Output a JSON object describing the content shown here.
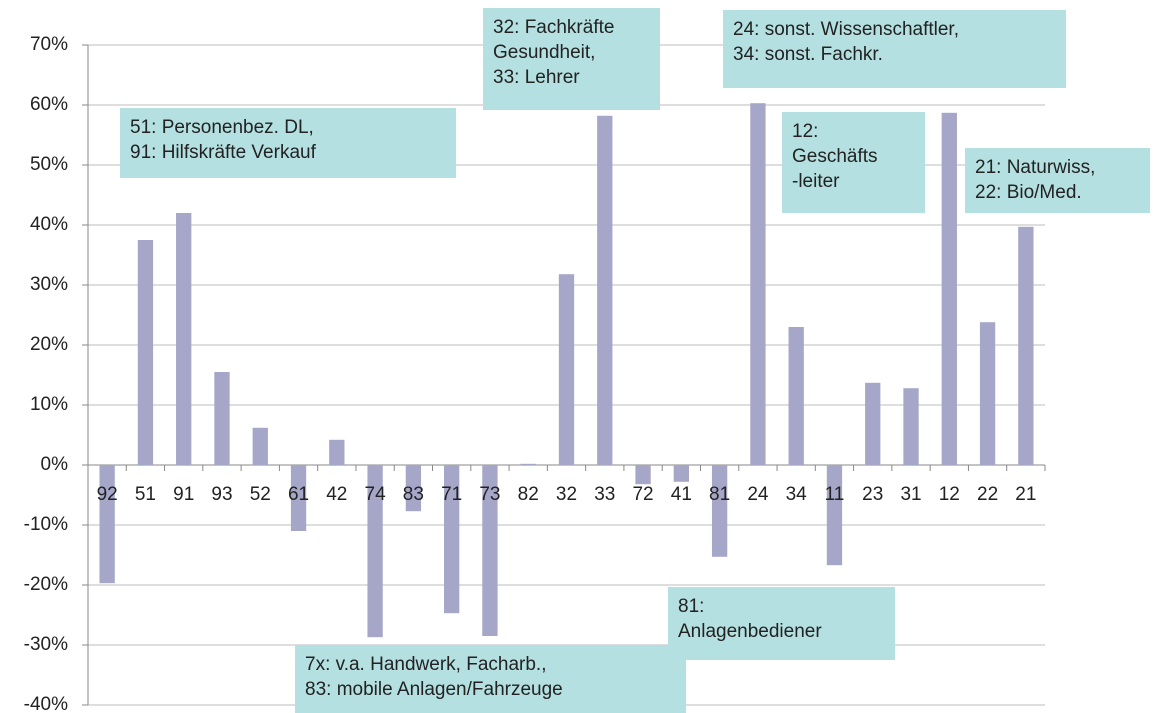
{
  "chart_data": {
    "type": "bar",
    "categories": [
      "92",
      "51",
      "91",
      "93",
      "52",
      "61",
      "42",
      "74",
      "83",
      "71",
      "73",
      "82",
      "32",
      "33",
      "72",
      "41",
      "81",
      "24",
      "34",
      "11",
      "23",
      "31",
      "12",
      "22",
      "21"
    ],
    "values": [
      -19.7,
      37.5,
      42,
      15.5,
      6.2,
      -11,
      4.2,
      -28.7,
      -7.7,
      -24.7,
      -28.5,
      0.2,
      31.8,
      58.2,
      -3.2,
      -2.8,
      -15.3,
      60.3,
      23,
      -16.7,
      13.7,
      12.8,
      58.7,
      23.8,
      39.7
    ],
    "color": "#a6a6c9",
    "ylim": [
      -40,
      70
    ],
    "yticks": [
      {
        "value": -40,
        "label": "-40%"
      },
      {
        "value": -30,
        "label": "-30%"
      },
      {
        "value": -20,
        "label": "-20%"
      },
      {
        "value": -10,
        "label": "-10%"
      },
      {
        "value": 0,
        "label": "0%"
      },
      {
        "value": 10,
        "label": "10%"
      },
      {
        "value": 20,
        "label": "20%"
      },
      {
        "value": 30,
        "label": "30%"
      },
      {
        "value": 40,
        "label": "40%"
      },
      {
        "value": 50,
        "label": "50%"
      },
      {
        "value": 60,
        "label": "60%"
      },
      {
        "value": 70,
        "label": "70%"
      }
    ],
    "grid": true,
    "annotations": [
      {
        "lines": [
          "51: Personenbez. DL,",
          "91: Hilfskräfte Verkauf"
        ]
      },
      {
        "lines": [
          "32: Fachkräfte",
          "Gesundheit,",
          "33: Lehrer"
        ]
      },
      {
        "lines": [
          "24: sonst. Wissenschaftler,",
          "34: sonst. Fachkr."
        ]
      },
      {
        "lines": [
          "12:",
          "Geschäfts",
          "-leiter"
        ]
      },
      {
        "lines": [
          "21: Naturwiss,",
          "22: Bio/Med."
        ]
      },
      {
        "lines": [
          "81:",
          "Anlagenbediener"
        ]
      },
      {
        "lines": [
          "7x: v.a. Handwerk, Facharb.,",
          "83: mobile Anlagen/Fahrzeuge"
        ]
      }
    ]
  }
}
